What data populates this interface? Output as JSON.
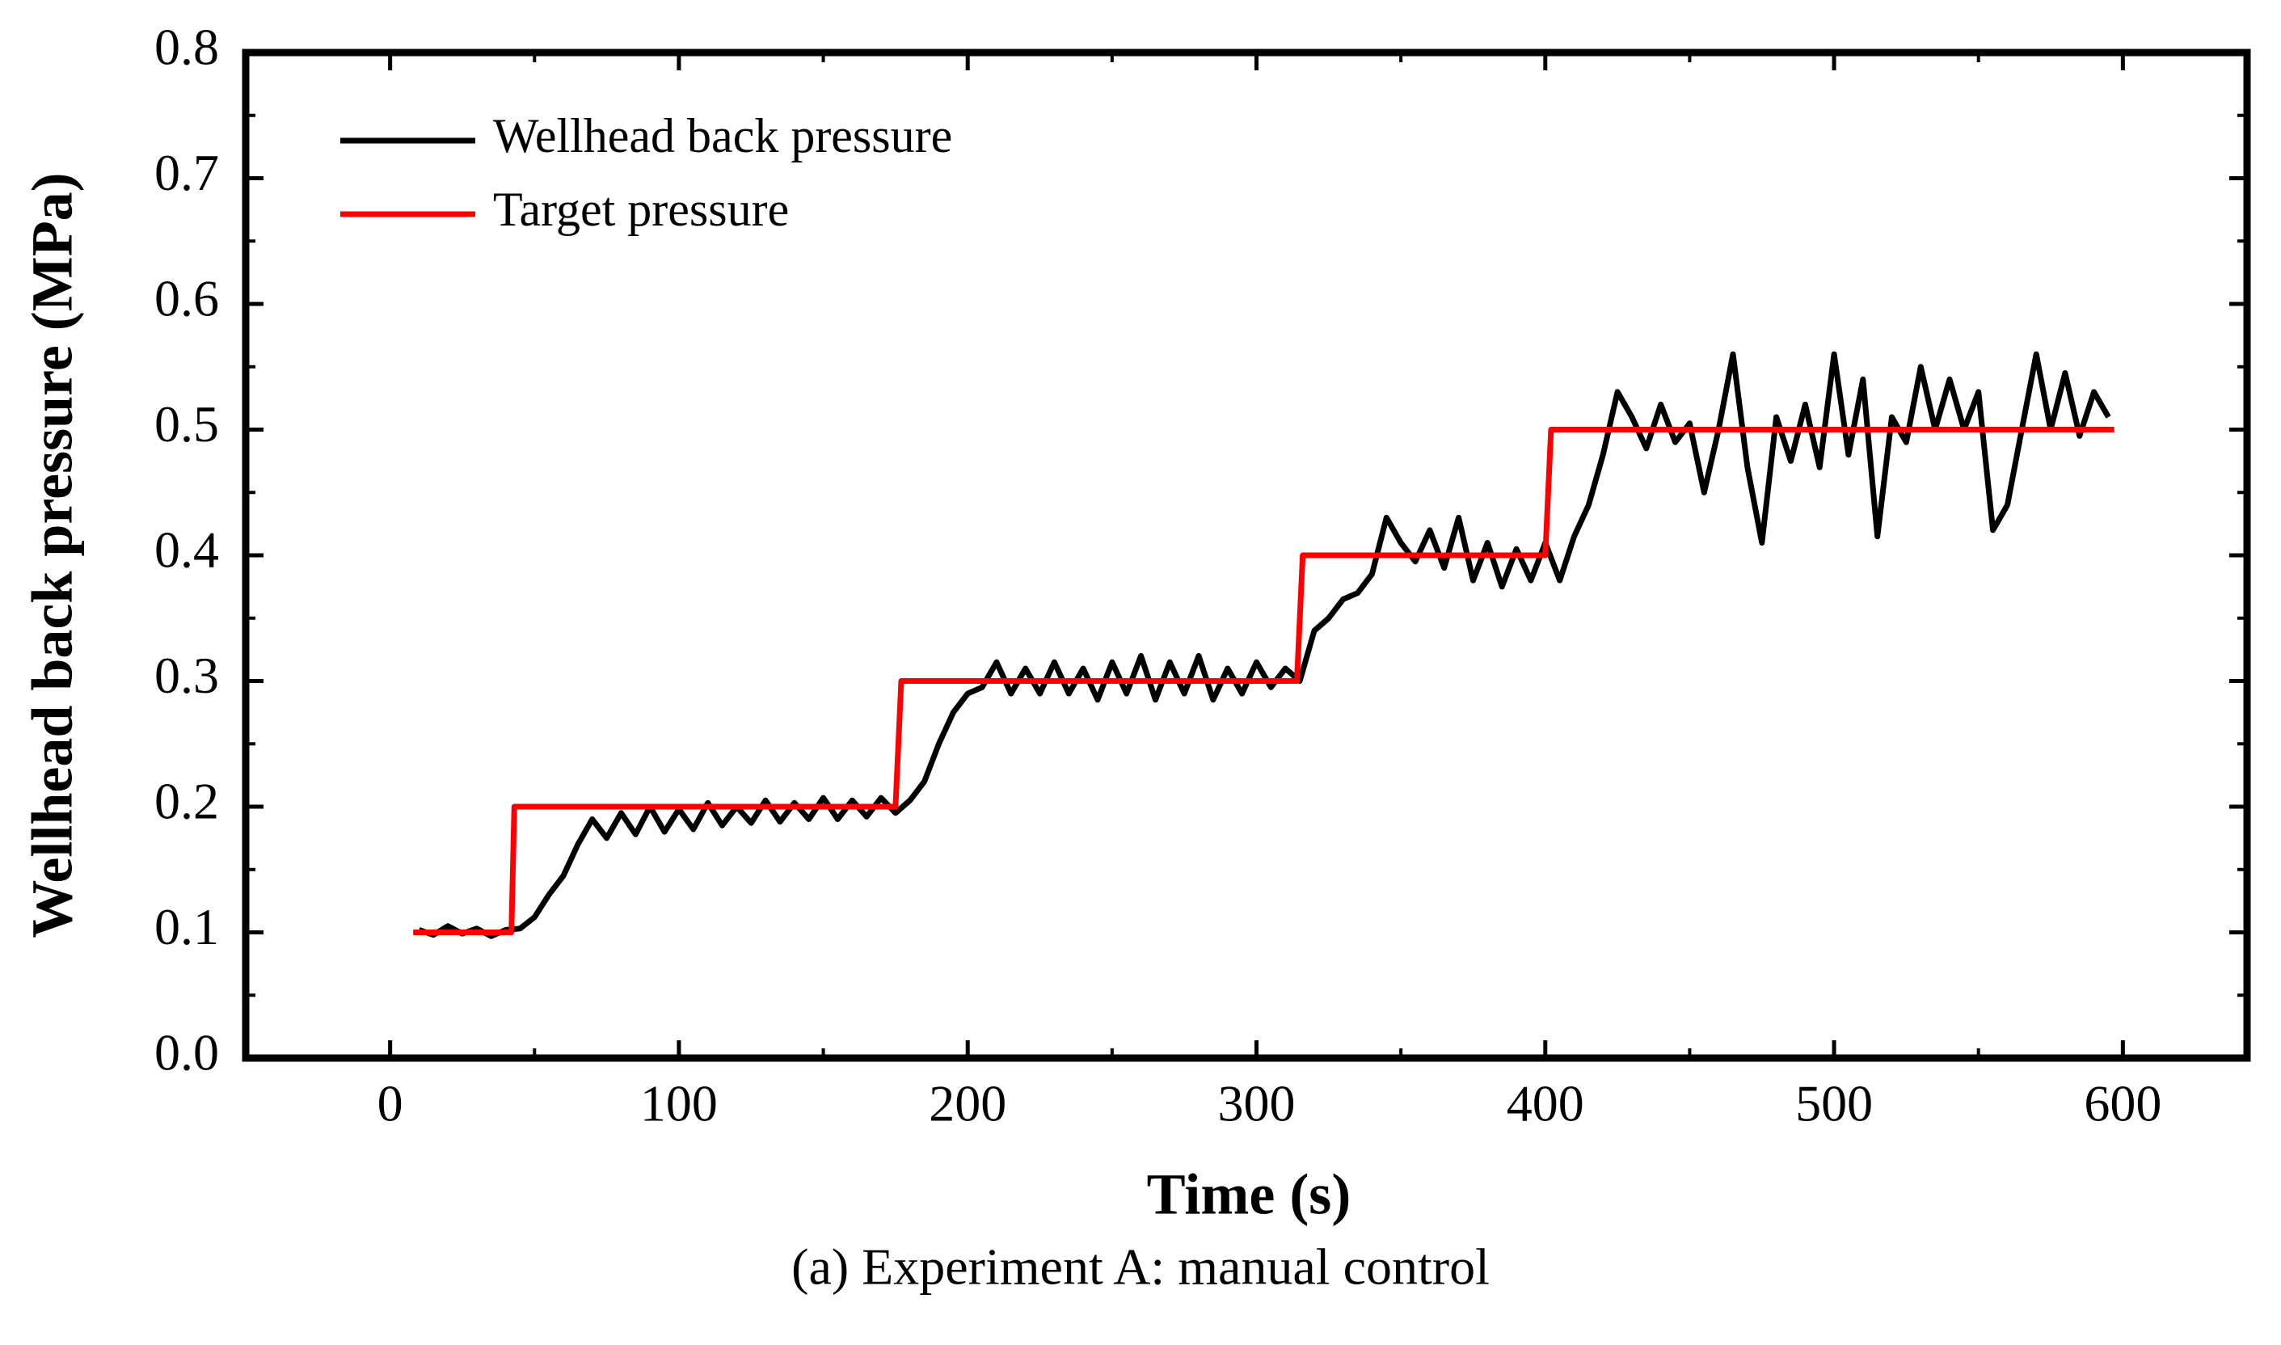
{
  "chart_data": {
    "type": "line",
    "caption": "(a) Experiment A: manual control",
    "x_label": "Time (s)",
    "y_label": "Wellhead back pressure (MPa)",
    "xlim": [
      -50,
      643
    ],
    "ylim": [
      0,
      0.8
    ],
    "xticks": [
      0,
      100,
      200,
      300,
      400,
      500,
      600
    ],
    "yticks": [
      {
        "value": 0,
        "label": "0.0"
      },
      0.1,
      0.2,
      0.3,
      0.4,
      0.5,
      0.6,
      0.7,
      0.8
    ],
    "legend": "upper left",
    "series": [
      {
        "name": "Wellhead back pressure",
        "color": "#000000",
        "x": [
          10,
          15,
          20,
          25,
          30,
          35,
          40,
          45,
          50,
          55,
          60,
          65,
          70,
          75,
          80,
          85,
          90,
          95,
          100,
          105,
          110,
          115,
          120,
          125,
          130,
          135,
          140,
          145,
          150,
          155,
          160,
          165,
          170,
          175,
          180,
          185,
          190,
          195,
          200,
          205,
          210,
          215,
          220,
          225,
          230,
          235,
          240,
          245,
          250,
          255,
          260,
          265,
          270,
          275,
          280,
          285,
          290,
          295,
          300,
          305,
          310,
          315,
          320,
          325,
          330,
          335,
          340,
          345,
          350,
          355,
          360,
          365,
          370,
          375,
          380,
          385,
          390,
          395,
          400,
          405,
          410,
          415,
          420,
          425,
          430,
          435,
          440,
          445,
          450,
          455,
          460,
          465,
          470,
          475,
          480,
          485,
          490,
          495,
          500,
          505,
          510,
          515,
          520,
          525,
          530,
          535,
          540,
          545,
          550,
          555,
          560,
          565,
          570,
          575,
          580,
          585,
          590,
          595
        ],
        "values": [
          0.102,
          0.098,
          0.105,
          0.099,
          0.103,
          0.097,
          0.102,
          0.103,
          0.112,
          0.13,
          0.145,
          0.17,
          0.19,
          0.175,
          0.195,
          0.178,
          0.2,
          0.18,
          0.198,
          0.182,
          0.203,
          0.185,
          0.2,
          0.187,
          0.205,
          0.188,
          0.203,
          0.19,
          0.207,
          0.19,
          0.205,
          0.192,
          0.207,
          0.195,
          0.205,
          0.22,
          0.25,
          0.275,
          0.29,
          0.295,
          0.315,
          0.29,
          0.31,
          0.29,
          0.315,
          0.29,
          0.31,
          0.285,
          0.315,
          0.29,
          0.32,
          0.285,
          0.315,
          0.29,
          0.32,
          0.285,
          0.31,
          0.29,
          0.315,
          0.295,
          0.31,
          0.3,
          0.34,
          0.35,
          0.365,
          0.37,
          0.385,
          0.43,
          0.41,
          0.395,
          0.42,
          0.39,
          0.43,
          0.38,
          0.41,
          0.375,
          0.405,
          0.38,
          0.41,
          0.38,
          0.415,
          0.44,
          0.48,
          0.53,
          0.51,
          0.485,
          0.52,
          0.49,
          0.505,
          0.45,
          0.5,
          0.56,
          0.47,
          0.41,
          0.51,
          0.475,
          0.52,
          0.47,
          0.56,
          0.48,
          0.54,
          0.415,
          0.51,
          0.49,
          0.55,
          0.5,
          0.54,
          0.5,
          0.53,
          0.42,
          0.44,
          0.5,
          0.56,
          0.5,
          0.545,
          0.495,
          0.53,
          0.51
        ]
      },
      {
        "name": "Target pressure",
        "color": "#ff0000",
        "x": [
          8,
          42,
          43,
          175,
          177,
          314,
          316,
          400,
          402,
          597
        ],
        "values": [
          0.1,
          0.1,
          0.2,
          0.2,
          0.3,
          0.3,
          0.4,
          0.4,
          0.5,
          0.5
        ]
      }
    ]
  }
}
